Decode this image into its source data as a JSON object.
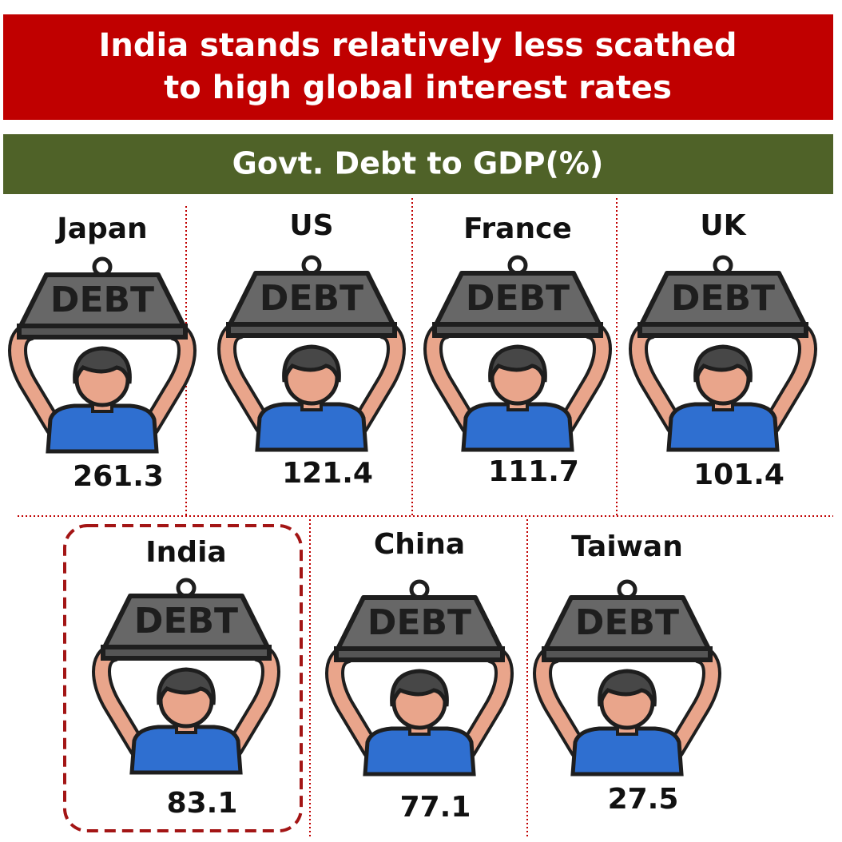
{
  "header": {
    "title_lines": [
      "India stands relatively less scathed",
      "to high global interest rates"
    ]
  },
  "subheader": "Govt. Debt to GDP(%)",
  "icon_label": "DEBT",
  "countries": [
    {
      "name": "Japan",
      "value": 261.3
    },
    {
      "name": "US",
      "value": 121.4
    },
    {
      "name": "France",
      "value": 111.7
    },
    {
      "name": "UK",
      "value": 101.4
    },
    {
      "name": "India",
      "value": 83.1
    },
    {
      "name": "China",
      "value": 77.1
    },
    {
      "name": "Taiwan",
      "value": 27.5
    }
  ]
}
